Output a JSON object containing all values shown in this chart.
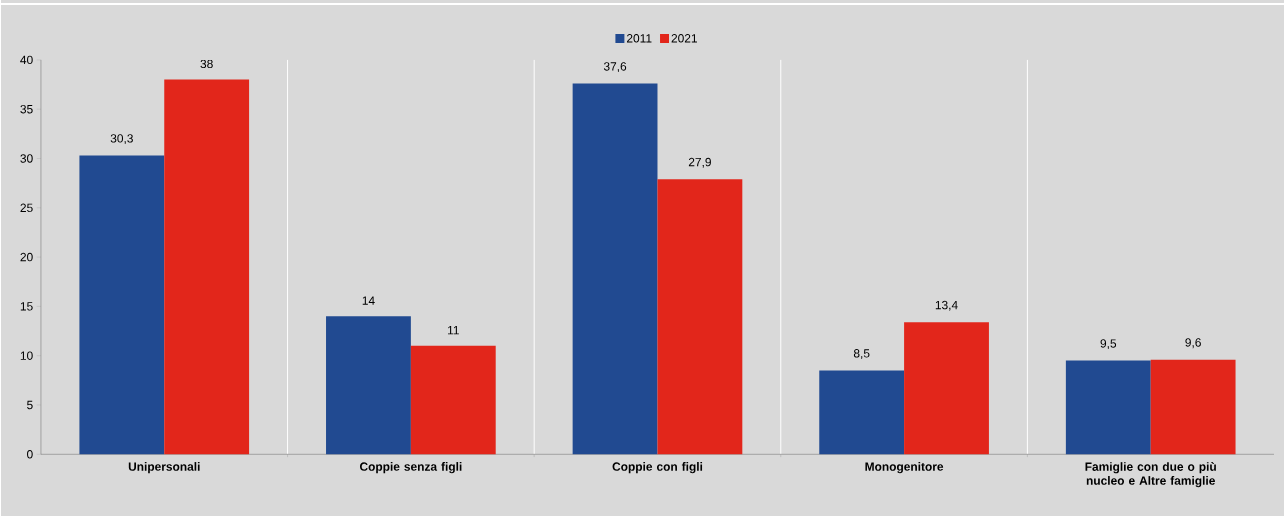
{
  "chart_data": {
    "type": "bar",
    "categories": [
      "Unipersonali",
      "Coppie senza figli",
      "Coppie con figli",
      "Monogenitore",
      "Famiglie con due o più nucleo e Altre famiglie"
    ],
    "series": [
      {
        "name": "2011",
        "color": "#214a91",
        "values": [
          30.3,
          14,
          37.6,
          8.5,
          9.5
        ],
        "value_labels": [
          "30,3",
          "14",
          "37,6",
          "8,5",
          "9,5"
        ]
      },
      {
        "name": "2021",
        "color": "#e2261b",
        "values": [
          38,
          11,
          27.9,
          13.4,
          9.6
        ],
        "value_labels": [
          "38",
          "11",
          "27,9",
          "13,4",
          "9,6"
        ]
      }
    ],
    "ylim": [
      0,
      40
    ],
    "yticks": [
      0,
      5,
      10,
      15,
      20,
      25,
      30,
      35,
      40
    ],
    "grid": "x",
    "legend": "top"
  }
}
